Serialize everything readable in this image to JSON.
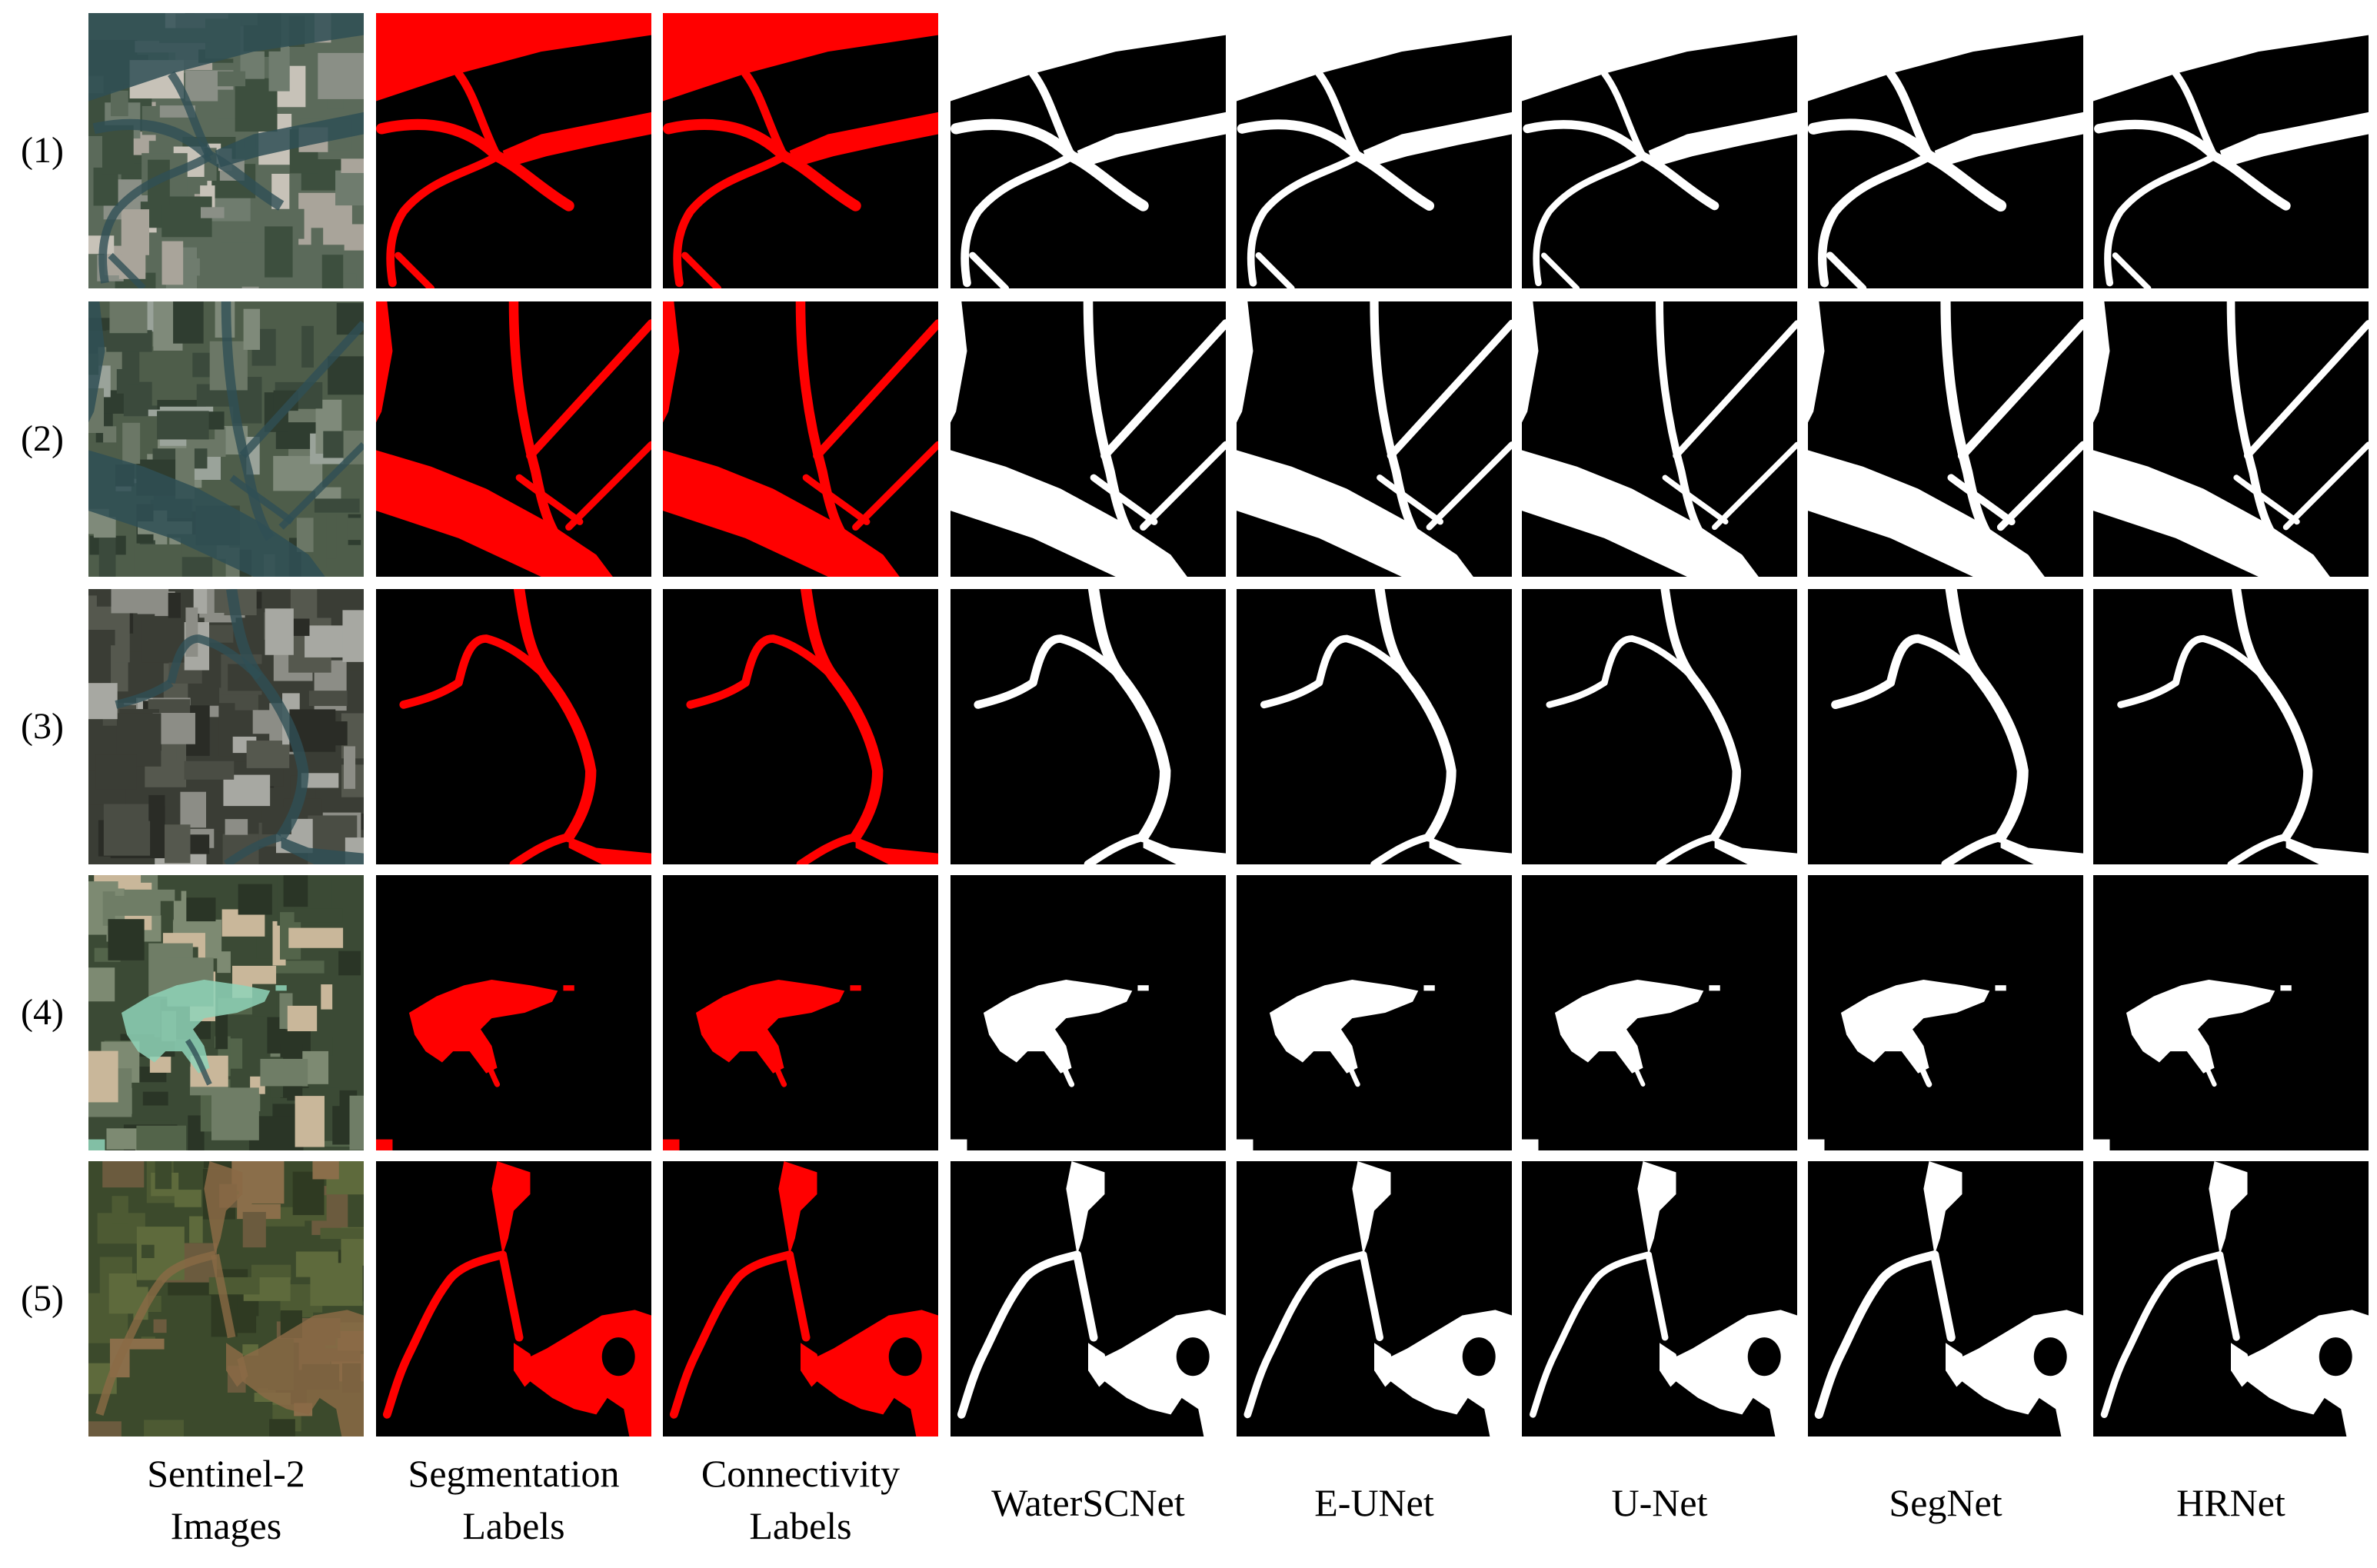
{
  "figure": {
    "row_labels": [
      "(1)",
      "(2)",
      "(3)",
      "(4)",
      "(5)"
    ],
    "columns": [
      {
        "label": "Sentinel-2\nImages",
        "kind": "image"
      },
      {
        "label": "Segmentation\nLabels",
        "kind": "label"
      },
      {
        "label": "Connectivity\nLabels",
        "kind": "label"
      },
      {
        "label": "WaterSCNet",
        "kind": "prediction"
      },
      {
        "label": "E-UNet",
        "kind": "prediction"
      },
      {
        "label": "U-Net",
        "kind": "prediction"
      },
      {
        "label": "SegNet",
        "kind": "prediction"
      },
      {
        "label": "HRNet",
        "kind": "prediction"
      }
    ],
    "colors": {
      "label_water": "#ff0000",
      "prediction_water": "#ffffff",
      "background": "#000000"
    }
  }
}
